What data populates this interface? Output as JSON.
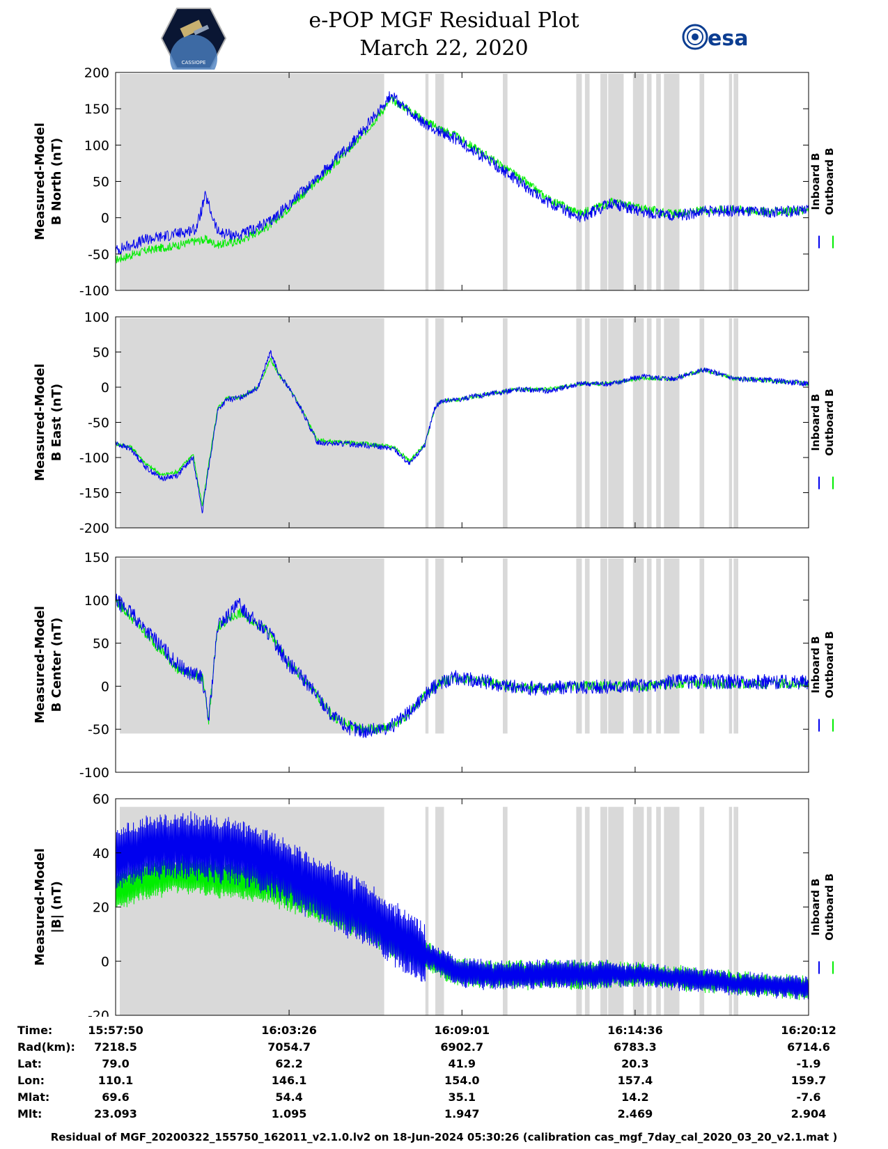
{
  "header": {
    "title_line1": "e-POP MGF Residual Plot",
    "title_line2": "March 22, 2020",
    "logo_left_text": "CASSIOPE",
    "logo_right_text": "esa"
  },
  "legend": {
    "inboard_label": "Inboard B",
    "outboard_label": "Outboard B",
    "inboard_color": "#0000ee",
    "outboard_color": "#00ee00"
  },
  "colors": {
    "eclipse_shade": "#d9d9d9",
    "inboard": "#0000ee",
    "outboard": "#00ee00"
  },
  "chart_data": [
    {
      "type": "line",
      "ylabel_line1": "Measured-Model",
      "ylabel_line2": "B North (nT)",
      "ylim": [
        -100,
        200
      ],
      "yticks": [
        -100,
        -50,
        0,
        50,
        100,
        150,
        200
      ],
      "xlim_minutes": [
        0,
        22.37
      ],
      "shade": {
        "y_top": 200,
        "y_bottom": -100
      },
      "series": [
        {
          "name": "Outboard B",
          "x": [
            0,
            1,
            2,
            2.6,
            2.9,
            3.3,
            4,
            5,
            6,
            7,
            8,
            8.9,
            9.5,
            10,
            11,
            12,
            13,
            14,
            15,
            16,
            17,
            18,
            19,
            20,
            21,
            22.37
          ],
          "y": [
            -58,
            -45,
            -38,
            -32,
            -30,
            -37,
            -32,
            -10,
            30,
            70,
            115,
            163,
            148,
            133,
            112,
            85,
            56,
            25,
            6,
            22,
            13,
            5,
            10,
            12,
            8,
            10
          ],
          "noise": 6,
          "osc": 0
        },
        {
          "name": "Inboard B",
          "x": [
            0,
            1,
            2,
            2.6,
            2.9,
            3.3,
            4,
            5,
            6,
            7,
            8,
            8.9,
            9.5,
            10,
            11,
            12,
            13,
            14,
            15,
            16,
            17,
            18,
            19,
            20,
            21,
            22.37
          ],
          "y": [
            -45,
            -30,
            -22,
            -15,
            30,
            -20,
            -25,
            -5,
            35,
            75,
            120,
            170,
            143,
            128,
            108,
            80,
            50,
            20,
            0,
            20,
            8,
            2,
            8,
            10,
            7,
            10
          ],
          "noise": 8,
          "osc": 0
        }
      ]
    },
    {
      "type": "line",
      "ylabel_line1": "Measured-Model",
      "ylabel_line2": "B East (nT)",
      "ylim": [
        -200,
        100
      ],
      "yticks": [
        -200,
        -150,
        -100,
        -50,
        0,
        50,
        100
      ],
      "xlim_minutes": [
        0,
        22.37
      ],
      "shade": {
        "y_top": 100,
        "y_bottom": -200
      },
      "series": [
        {
          "name": "Outboard B",
          "x": [
            0,
            0.5,
            1,
            1.5,
            2,
            2.5,
            2.8,
            3,
            3.3,
            3.6,
            4,
            4.6,
            5,
            5.3,
            5.5,
            6,
            6.5,
            7,
            8,
            9,
            9.5,
            10,
            10.3,
            10.5,
            11,
            12,
            13,
            14,
            15,
            16,
            17,
            18,
            19,
            20,
            21,
            22.37
          ],
          "y": [
            -80,
            -85,
            -110,
            -125,
            -120,
            -95,
            -170,
            -110,
            -30,
            -15,
            -15,
            0,
            40,
            15,
            5,
            -30,
            -75,
            -78,
            -80,
            -85,
            -105,
            -80,
            -30,
            -20,
            -18,
            -10,
            -3,
            -3,
            5,
            5,
            13,
            12,
            25,
            12,
            10,
            5
          ],
          "noise": 3,
          "osc": 0
        },
        {
          "name": "Inboard B",
          "x": [
            0,
            0.5,
            1,
            1.5,
            2,
            2.5,
            2.8,
            3,
            3.3,
            3.6,
            4,
            4.6,
            5,
            5.3,
            5.5,
            6,
            6.5,
            7,
            8,
            9,
            9.5,
            10,
            10.3,
            10.5,
            11,
            12,
            13,
            14,
            15,
            16,
            17,
            18,
            19,
            20,
            21,
            22.37
          ],
          "y": [
            -80,
            -88,
            -115,
            -130,
            -125,
            -100,
            -178,
            -115,
            -32,
            -18,
            -15,
            0,
            50,
            15,
            5,
            -32,
            -78,
            -80,
            -82,
            -88,
            -110,
            -80,
            -30,
            -20,
            -18,
            -10,
            -3,
            -5,
            5,
            5,
            15,
            12,
            25,
            12,
            10,
            5
          ],
          "noise": 4,
          "osc": 0
        }
      ]
    },
    {
      "type": "line",
      "ylabel_line1": "Measured-Model",
      "ylabel_line2": "B Center (nT)",
      "ylim": [
        -100,
        150
      ],
      "yticks": [
        -100,
        -50,
        0,
        50,
        100,
        150
      ],
      "xlim_minutes": [
        0,
        22.37
      ],
      "shade": {
        "y_top": 150,
        "y_bottom": -55
      },
      "series": [
        {
          "name": "Outboard B",
          "x": [
            0,
            0.5,
            1,
            1.5,
            2,
            2.4,
            2.8,
            3,
            3.3,
            4,
            4.5,
            5,
            5.5,
            6,
            6.5,
            7,
            7.5,
            8,
            8.5,
            9,
            9.5,
            10,
            10.5,
            11,
            12,
            13,
            14,
            15,
            16,
            17,
            18,
            19,
            20,
            21,
            22.37
          ],
          "y": [
            100,
            80,
            60,
            40,
            20,
            15,
            10,
            -40,
            70,
            85,
            75,
            60,
            30,
            10,
            -10,
            -35,
            -45,
            -50,
            -50,
            -45,
            -30,
            -10,
            5,
            10,
            5,
            -2,
            -2,
            0,
            0,
            0,
            3,
            3,
            3,
            3,
            3
          ],
          "noise": 6,
          "osc": 0
        },
        {
          "name": "Inboard B",
          "x": [
            0,
            0.5,
            1,
            1.5,
            2,
            2.4,
            2.8,
            3,
            3.3,
            4,
            4.5,
            5,
            5.5,
            6,
            6.5,
            7,
            7.5,
            8,
            8.5,
            9,
            9.5,
            10,
            10.5,
            11,
            12,
            13,
            14,
            15,
            16,
            17,
            18,
            19,
            20,
            21,
            22.37
          ],
          "y": [
            100,
            85,
            65,
            45,
            25,
            15,
            10,
            -40,
            70,
            95,
            75,
            60,
            30,
            10,
            -10,
            -35,
            -48,
            -52,
            -50,
            -45,
            -30,
            -10,
            5,
            10,
            5,
            -2,
            -2,
            0,
            0,
            0,
            5,
            5,
            5,
            5,
            5
          ],
          "noise": 9,
          "osc": 0
        }
      ]
    },
    {
      "type": "line",
      "ylabel_line1": "Measured-Model",
      "ylabel_line2": "|B| (nT)",
      "ylim": [
        -20,
        60
      ],
      "yticks": [
        -20,
        0,
        20,
        40,
        60
      ],
      "xlim_minutes": [
        0,
        22.37
      ],
      "shade": {
        "y_top": 57,
        "y_bottom": -20
      },
      "series": [
        {
          "name": "Outboard B",
          "x": [
            0,
            1,
            2,
            3,
            4,
            5,
            6,
            7,
            8,
            9,
            10,
            11,
            12,
            13,
            14,
            15,
            16,
            17,
            18,
            19,
            20,
            21,
            22.37
          ],
          "y": [
            26,
            30,
            32,
            31,
            30,
            28,
            24,
            20,
            15,
            8,
            2,
            -4,
            -5,
            -5,
            -5,
            -5,
            -5,
            -5,
            -6,
            -7,
            -8,
            -9,
            -10
          ],
          "noise": 1,
          "osc": 7
        },
        {
          "name": "Inboard B",
          "x": [
            0,
            1,
            2,
            3,
            4,
            5,
            6,
            7,
            8,
            9,
            10,
            11,
            12,
            13,
            14,
            15,
            16,
            17,
            18,
            19,
            20,
            21,
            22.37
          ],
          "y": [
            38,
            42,
            43,
            42,
            40,
            36,
            30,
            24,
            18,
            10,
            3,
            -4,
            -5,
            -5,
            -5,
            -5,
            -5,
            -5,
            -6,
            -7,
            -8,
            -9,
            -10
          ],
          "noise": 1,
          "osc": 12
        }
      ]
    }
  ],
  "shade_bands_minutes": [
    [
      0,
      8.67
    ],
    [
      10.0,
      10.1
    ],
    [
      10.32,
      10.6
    ],
    [
      12.5,
      12.65
    ],
    [
      14.87,
      15.05
    ],
    [
      15.15,
      15.3
    ],
    [
      15.65,
      15.87
    ],
    [
      15.9,
      16.4
    ],
    [
      16.7,
      17.05
    ],
    [
      17.15,
      17.3
    ],
    [
      17.45,
      17.6
    ],
    [
      17.7,
      18.2
    ],
    [
      18.85,
      19.0
    ],
    [
      19.8,
      19.9
    ],
    [
      19.95,
      20.1
    ]
  ],
  "x_ticks": [
    {
      "time": "15:57:50",
      "rad": "7218.5",
      "lat": "79.0",
      "lon": "110.1",
      "mlat": "69.6",
      "mlt": "23.093"
    },
    {
      "time": "16:03:26",
      "rad": "7054.7",
      "lat": "62.2",
      "lon": "146.1",
      "mlat": "54.4",
      "mlt": "1.095"
    },
    {
      "time": "16:09:01",
      "rad": "6902.7",
      "lat": "41.9",
      "lon": "154.0",
      "mlat": "35.1",
      "mlt": "1.947"
    },
    {
      "time": "16:14:36",
      "rad": "6783.3",
      "lat": "20.3",
      "lon": "157.4",
      "mlat": "14.2",
      "mlt": "2.469"
    },
    {
      "time": "16:20:12",
      "rad": "6714.6",
      "lat": "-1.9",
      "lon": "159.7",
      "mlat": "-7.6",
      "mlt": "2.904"
    }
  ],
  "info_labels": {
    "time": "Time:",
    "rad": "Rad(km):",
    "lat": "Lat:",
    "lon": "Lon:",
    "mlat": "Mlat:",
    "mlt": "Mlt:"
  },
  "footer": "Residual of MGF_20200322_155750_162011_v2.1.0.lv2 on 18-Jun-2024 05:30:26 (calibration cas_mgf_7day_cal_2020_03_20_v2.1.mat )"
}
